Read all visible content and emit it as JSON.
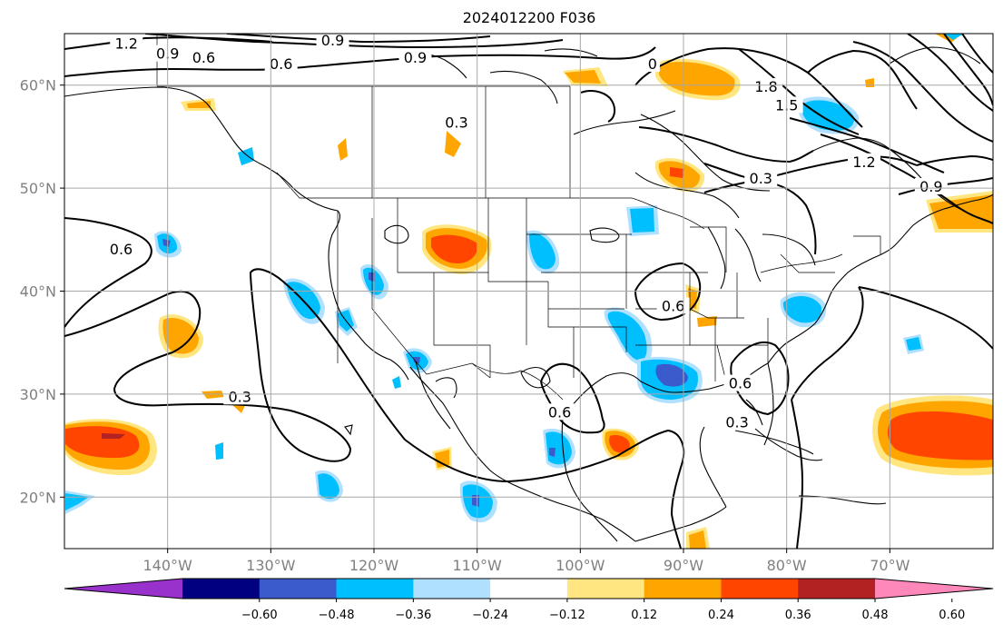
{
  "title": "2024012200 F036",
  "map": {
    "lon_range": [
      -150,
      -60
    ],
    "lat_range": [
      15,
      65
    ],
    "x_ticks": [
      {
        "lon": -140,
        "label": "140°W"
      },
      {
        "lon": -130,
        "label": "130°W"
      },
      {
        "lon": -120,
        "label": "120°W"
      },
      {
        "lon": -110,
        "label": "110°W"
      },
      {
        "lon": -100,
        "label": "100°W"
      },
      {
        "lon": -90,
        "label": "90°W"
      },
      {
        "lon": -80,
        "label": "80°W"
      },
      {
        "lon": -70,
        "label": "70°W"
      }
    ],
    "y_ticks": [
      {
        "lat": 20,
        "label": "20°N"
      },
      {
        "lat": 30,
        "label": "30°N"
      },
      {
        "lat": 40,
        "label": "40°N"
      },
      {
        "lat": 50,
        "label": "50°N"
      },
      {
        "lat": 60,
        "label": "60°N"
      }
    ],
    "grid": true,
    "contour_labels": [
      {
        "text": "1.2",
        "lon": -144,
        "lat": 64
      },
      {
        "text": "0.9",
        "lon": -140,
        "lat": 63
      },
      {
        "text": "0.9",
        "lon": -124,
        "lat": 64.3
      },
      {
        "text": "0.6",
        "lon": -136.5,
        "lat": 62.6
      },
      {
        "text": "0.9",
        "lon": -116,
        "lat": 62.6
      },
      {
        "text": "0.6",
        "lon": -129,
        "lat": 62.0
      },
      {
        "text": "0.3",
        "lon": -112,
        "lat": 56.3
      },
      {
        "text": "0",
        "lon": -93,
        "lat": 62
      },
      {
        "text": "1.8",
        "lon": -82,
        "lat": 59.8
      },
      {
        "text": "1.5",
        "lon": -80,
        "lat": 58.0
      },
      {
        "text": "1.2",
        "lon": -72.5,
        "lat": 52.5
      },
      {
        "text": "0.3",
        "lon": -82.5,
        "lat": 50.9
      },
      {
        "text": "0.9",
        "lon": -66,
        "lat": 50.1
      },
      {
        "text": "0.6",
        "lon": -144.5,
        "lat": 44.0
      },
      {
        "text": "0.6",
        "lon": -91,
        "lat": 38.5
      },
      {
        "text": "0.3",
        "lon": -133,
        "lat": 29.7
      },
      {
        "text": "0.6",
        "lon": -102,
        "lat": 28.2
      },
      {
        "text": "0.6",
        "lon": -84.5,
        "lat": 31.0
      },
      {
        "text": "0.3",
        "lon": -84.8,
        "lat": 27.2
      }
    ],
    "colors": {
      "grid": "#a8a8a8",
      "tick_label": "#808080"
    }
  },
  "colorbar": {
    "labels": [
      "−0.60",
      "−0.48",
      "−0.36",
      "−0.24",
      "−0.12",
      "0.12",
      "0.24",
      "0.36",
      "0.48",
      "0.60"
    ],
    "colors": [
      "#9932cc",
      "#000080",
      "#3b5bcc",
      "#00bfff",
      "#b0e0ff",
      "#ffffff",
      "#ffe680",
      "#ffa500",
      "#ff4500",
      "#b22222",
      "#ff88bb"
    ]
  }
}
